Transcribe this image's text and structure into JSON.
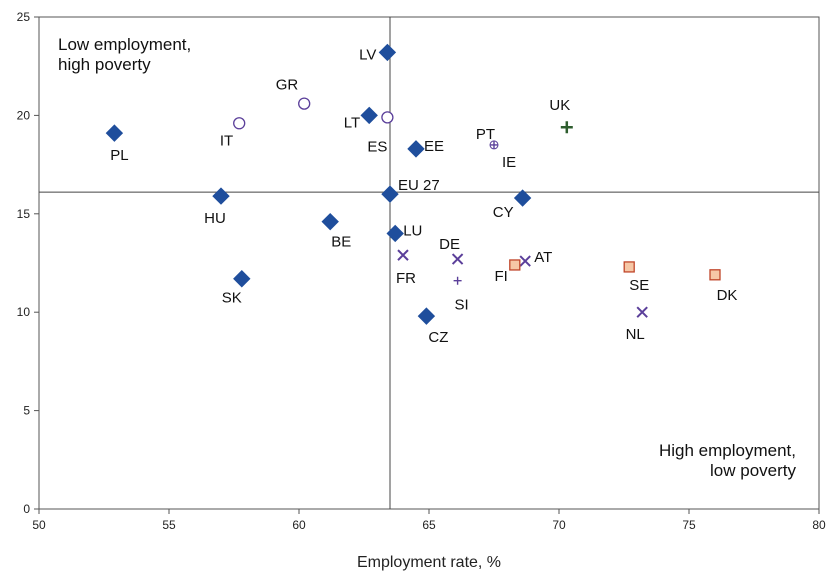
{
  "chart_data": {
    "type": "scatter",
    "title": "",
    "xlabel": "Employment rate, %",
    "ylabel": "",
    "xlim": [
      50,
      80
    ],
    "ylim": [
      0,
      25
    ],
    "xticks": [
      50,
      55,
      60,
      65,
      70,
      75,
      80
    ],
    "yticks": [
      0,
      5,
      10,
      15,
      20,
      25
    ],
    "grid": false,
    "reference_lines": {
      "x": 63.5,
      "y": 16.1
    },
    "annotations": [
      {
        "lines": [
          "Low employment,",
          "high poverty"
        ],
        "position": "top-left"
      },
      {
        "lines": [
          "High employment,",
          "low poverty"
        ],
        "position": "bottom-right"
      }
    ],
    "marker_styles": {
      "diamond": {
        "fill": "#1f4e9c",
        "stroke": "#1f4e9c"
      },
      "circle": {
        "fill": "#ffffff",
        "stroke": "#5b3f9a"
      },
      "cross": {
        "stroke": "#5b3f9a"
      },
      "square": {
        "fill": "#f6c7a6",
        "stroke": "#c0462a"
      },
      "plus": {
        "stroke": "#2e5d2e"
      },
      "small_plus": {
        "stroke": "#5b3f9a"
      }
    },
    "points": [
      {
        "label": "LV",
        "x": 63.4,
        "y": 23.2,
        "marker": "diamond"
      },
      {
        "label": "GR",
        "x": 60.2,
        "y": 20.6,
        "marker": "circle"
      },
      {
        "label": "IT",
        "x": 57.7,
        "y": 19.6,
        "marker": "circle"
      },
      {
        "label": "PL",
        "x": 52.9,
        "y": 19.1,
        "marker": "diamond"
      },
      {
        "label": "LT",
        "x": 62.7,
        "y": 20.0,
        "marker": "diamond"
      },
      {
        "label": "ES",
        "x": 63.4,
        "y": 19.9,
        "marker": "circle"
      },
      {
        "label": "EE",
        "x": 64.5,
        "y": 18.3,
        "marker": "diamond"
      },
      {
        "label": "PT",
        "x": 67.5,
        "y": 18.5,
        "marker": "small_plus"
      },
      {
        "label": "IE",
        "x": 67.5,
        "y": 18.5,
        "marker": "none"
      },
      {
        "label": "UK",
        "x": 70.3,
        "y": 19.4,
        "marker": "plus"
      },
      {
        "label": "EU 27",
        "x": 63.5,
        "y": 16.0,
        "marker": "diamond"
      },
      {
        "label": "HU",
        "x": 57.0,
        "y": 15.9,
        "marker": "diamond"
      },
      {
        "label": "CY",
        "x": 68.6,
        "y": 15.8,
        "marker": "diamond"
      },
      {
        "label": "BE",
        "x": 61.2,
        "y": 14.6,
        "marker": "diamond"
      },
      {
        "label": "LU",
        "x": 63.7,
        "y": 14.0,
        "marker": "diamond"
      },
      {
        "label": "FR",
        "x": 64.0,
        "y": 12.9,
        "marker": "cross"
      },
      {
        "label": "DE",
        "x": 66.1,
        "y": 12.7,
        "marker": "cross"
      },
      {
        "label": "SI",
        "x": 66.1,
        "y": 11.6,
        "marker": "small_plus"
      },
      {
        "label": "AT",
        "x": 68.7,
        "y": 12.6,
        "marker": "cross"
      },
      {
        "label": "FI",
        "x": 68.3,
        "y": 12.4,
        "marker": "square"
      },
      {
        "label": "SE",
        "x": 72.7,
        "y": 12.3,
        "marker": "square"
      },
      {
        "label": "DK",
        "x": 76.0,
        "y": 11.9,
        "marker": "square"
      },
      {
        "label": "SK",
        "x": 57.8,
        "y": 11.7,
        "marker": "diamond"
      },
      {
        "label": "NL",
        "x": 73.2,
        "y": 10.0,
        "marker": "cross"
      },
      {
        "label": "CZ",
        "x": 64.9,
        "y": 9.8,
        "marker": "diamond"
      }
    ]
  }
}
